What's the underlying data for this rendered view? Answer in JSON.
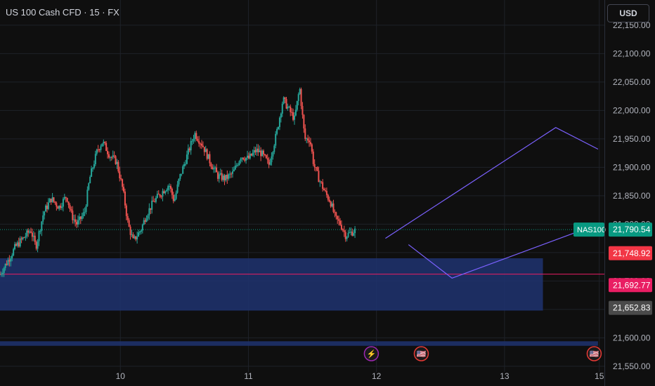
{
  "header": {
    "title": "US 100 Cash CFD · 15 · FX",
    "currency_button": "USD"
  },
  "colors": {
    "up": "#26a69a",
    "down": "#ef5350",
    "zone": "#1e3270",
    "projection": "#7b61ff",
    "grid": "#1f2229"
  },
  "chart_data": {
    "type": "candlestick",
    "title": "US 100 Cash CFD · 15 · FX",
    "y_ticks": [
      22150,
      22100,
      22050,
      22000,
      21950,
      21900,
      21850,
      21800,
      21750,
      21700,
      21650,
      21600,
      21550
    ],
    "y_tick_labels": [
      "22,150.00",
      "22,100.00",
      "22,050.00",
      "22,000.00",
      "21,950.00",
      "21,900.00",
      "21,850.00",
      "21,800.00",
      "21,750.00",
      "21,700.00",
      "21,650.00",
      "21,600.00",
      "21,550.00"
    ],
    "ylim": [
      21540,
      22182
    ],
    "x_labels": [
      {
        "label": "10",
        "x": 10.0
      },
      {
        "label": "11",
        "x": 11.0
      },
      {
        "label": "12",
        "x": 12.0
      },
      {
        "label": "13",
        "x": 13.0
      },
      {
        "label": "15",
        "x": 13.74
      }
    ],
    "xlim": [
      9.06,
      13.78
    ],
    "price_path": [
      [
        9.06,
        21712
      ],
      [
        9.12,
        21735
      ],
      [
        9.18,
        21760
      ],
      [
        9.24,
        21775
      ],
      [
        9.3,
        21790
      ],
      [
        9.34,
        21760
      ],
      [
        9.4,
        21820
      ],
      [
        9.46,
        21845
      ],
      [
        9.52,
        21830
      ],
      [
        9.58,
        21850
      ],
      [
        9.62,
        21815
      ],
      [
        9.66,
        21800
      ],
      [
        9.72,
        21820
      ],
      [
        9.76,
        21880
      ],
      [
        9.82,
        21930
      ],
      [
        9.86,
        21945
      ],
      [
        9.92,
        21920
      ],
      [
        9.97,
        21910
      ],
      [
        10.02,
        21860
      ],
      [
        10.06,
        21800
      ],
      [
        10.1,
        21770
      ],
      [
        10.16,
        21790
      ],
      [
        10.2,
        21815
      ],
      [
        10.26,
        21840
      ],
      [
        10.32,
        21855
      ],
      [
        10.38,
        21870
      ],
      [
        10.42,
        21840
      ],
      [
        10.46,
        21880
      ],
      [
        10.52,
        21920
      ],
      [
        10.58,
        21960
      ],
      [
        10.64,
        21940
      ],
      [
        10.7,
        21910
      ],
      [
        10.76,
        21885
      ],
      [
        10.82,
        21880
      ],
      [
        10.88,
        21890
      ],
      [
        10.94,
        21920
      ],
      [
        11.0,
        21915
      ],
      [
        11.06,
        21930
      ],
      [
        11.1,
        21925
      ],
      [
        11.16,
        21905
      ],
      [
        11.22,
        21960
      ],
      [
        11.27,
        22020
      ],
      [
        11.32,
        22000
      ],
      [
        11.36,
        21985
      ],
      [
        11.4,
        22040
      ],
      [
        11.44,
        21950
      ],
      [
        11.48,
        21950
      ],
      [
        11.51,
        21905
      ],
      [
        11.55,
        21880
      ],
      [
        11.6,
        21855
      ],
      [
        11.64,
        21840
      ],
      [
        11.68,
        21810
      ],
      [
        11.72,
        21800
      ],
      [
        11.76,
        21780
      ],
      [
        11.8,
        21785
      ],
      [
        11.84,
        21790
      ]
    ],
    "annotations": {
      "demand_zone_upper": [
        21740,
        21648
      ],
      "demand_zone_lower": [
        21594,
        21586
      ],
      "zone_line": 21712,
      "projection_path_a": [
        [
          12.07,
          21775
        ],
        [
          13.4,
          21970
        ],
        [
          13.73,
          21932
        ]
      ],
      "projection_path_b": [
        [
          12.25,
          21764
        ],
        [
          12.59,
          21705
        ],
        [
          13.73,
          21800
        ]
      ],
      "current_price_line": 21790.54
    },
    "price_labels": [
      {
        "name": "symbol",
        "text": "NAS100",
        "value": 21790.54,
        "bg": "#089981"
      },
      {
        "name": "last",
        "text": "21,790.54",
        "value": 21790.54,
        "bg": "#089981"
      },
      {
        "name": "high-tag",
        "text": "21,748.92",
        "value": 21748.92,
        "bg": "#f23645"
      },
      {
        "name": "level-tag",
        "text": "21,692.77",
        "value": 21692.77,
        "bg": "#e91e63"
      },
      {
        "name": "zone-tag",
        "text": "21,652.83",
        "value": 21652.83,
        "bg": "#4a4a4a"
      }
    ],
    "event_icons": [
      {
        "name": "lightning-icon",
        "x": 11.96,
        "glyph": "⚡"
      },
      {
        "name": "us-flag-icon",
        "x": 12.35,
        "glyph": "🇺🇸"
      },
      {
        "name": "us-flag-icon",
        "x": 13.7,
        "glyph": "🇺🇸"
      }
    ]
  }
}
